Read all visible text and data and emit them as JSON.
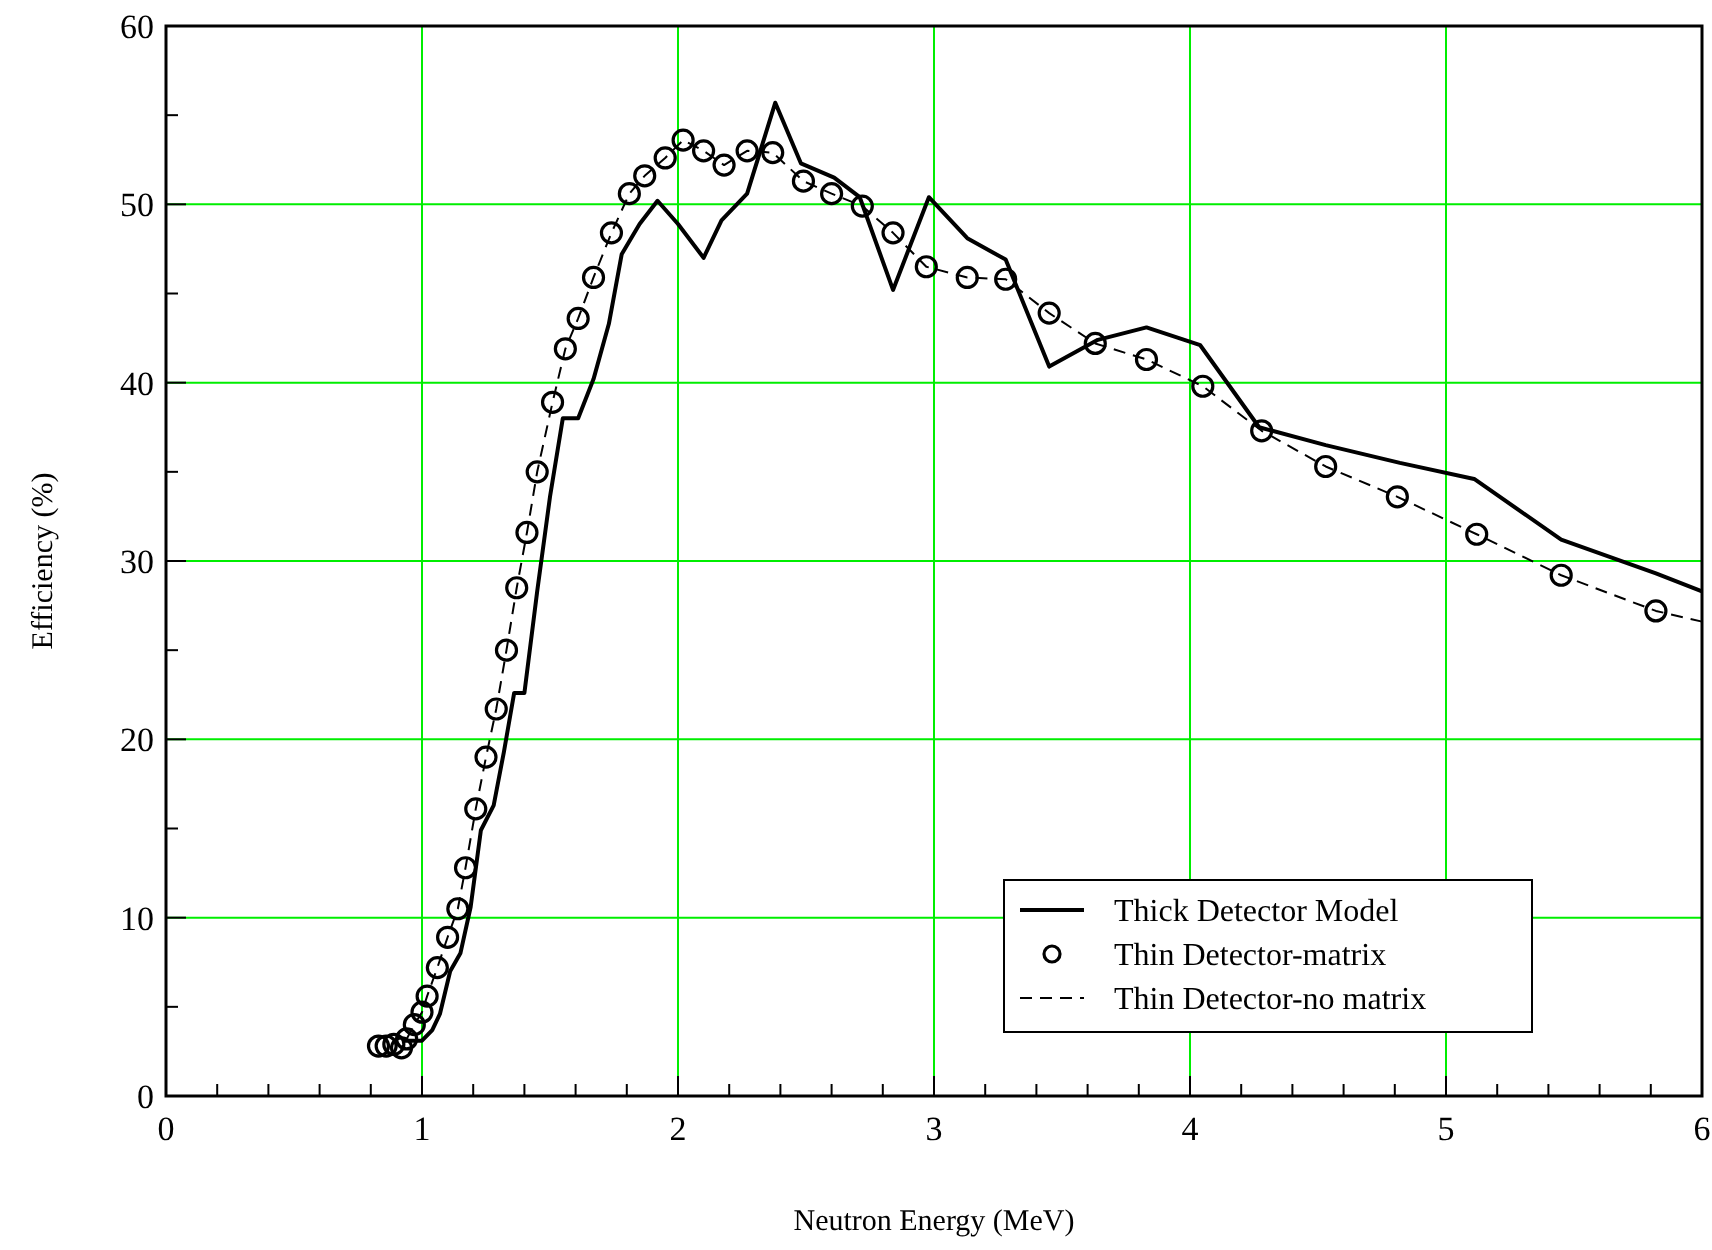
{
  "chart_data": {
    "type": "line",
    "xlabel": "Neutron Energy (MeV)",
    "ylabel": "Efficiency (%)",
    "xlim": [
      0,
      6
    ],
    "ylim": [
      0,
      60
    ],
    "xticks": [
      0,
      {
        "value": 0.2,
        "label": null
      },
      {
        "value": 0.4,
        "label": null
      },
      {
        "value": 0.6,
        "label": null
      },
      {
        "value": 0.8,
        "label": null
      },
      1,
      {
        "value": 1.2,
        "label": null
      },
      {
        "value": 1.4,
        "label": null
      },
      {
        "value": 1.6,
        "label": null
      },
      {
        "value": 1.8,
        "label": null
      },
      2,
      {
        "value": 2.2,
        "label": null
      },
      {
        "value": 2.4,
        "label": null
      },
      {
        "value": 2.6,
        "label": null
      },
      {
        "value": 2.8,
        "label": null
      },
      3,
      {
        "value": 3.2,
        "label": null
      },
      {
        "value": 3.4,
        "label": null
      },
      {
        "value": 3.6,
        "label": null
      },
      {
        "value": 3.8,
        "label": null
      },
      4,
      {
        "value": 4.2,
        "label": null
      },
      {
        "value": 4.4,
        "label": null
      },
      {
        "value": 4.6,
        "label": null
      },
      {
        "value": 4.8,
        "label": null
      },
      5,
      {
        "value": 5.2,
        "label": null
      },
      {
        "value": 5.4,
        "label": null
      },
      {
        "value": 5.6,
        "label": null
      },
      {
        "value": 5.8,
        "label": null
      },
      6
    ],
    "yticks": [
      0,
      {
        "value": 5,
        "label": null
      },
      10,
      {
        "value": 15,
        "label": null
      },
      20,
      {
        "value": 25,
        "label": null
      },
      30,
      {
        "value": 35,
        "label": null
      },
      40,
      {
        "value": 45,
        "label": null
      },
      50,
      {
        "value": 55,
        "label": null
      },
      60
    ],
    "grid": true,
    "legend": "bottom right",
    "series": [
      {
        "name": "Thick Detector Model",
        "type": "line",
        "color": "#000000",
        "line_style": "solid",
        "marker": "none",
        "x": [
          0.93,
          1.0,
          1.04,
          1.07,
          1.11,
          1.15,
          1.19,
          1.23,
          1.28,
          1.32,
          1.36,
          1.4,
          1.45,
          1.5,
          1.55,
          1.61,
          1.67,
          1.73,
          1.78,
          1.85,
          1.92,
          2.0,
          2.1,
          2.17,
          2.27,
          2.38,
          2.48,
          2.61,
          2.71,
          2.84,
          2.98,
          3.13,
          3.28,
          3.45,
          3.64,
          3.83,
          4.04,
          4.27,
          4.53,
          4.82,
          5.11,
          5.45,
          5.82,
          6.0
        ],
        "values": [
          3.1,
          3.1,
          3.7,
          4.6,
          7.0,
          8.0,
          10.6,
          14.9,
          16.3,
          19.3,
          22.6,
          22.6,
          28.3,
          33.6,
          38.0,
          38.0,
          40.2,
          43.3,
          47.2,
          48.9,
          50.2,
          48.9,
          47.0,
          49.1,
          50.6,
          55.7,
          52.3,
          51.5,
          50.4,
          45.2,
          50.4,
          48.1,
          46.9,
          40.9,
          42.4,
          43.1,
          42.1,
          37.5,
          36.5,
          35.5,
          34.6,
          31.2,
          29.3,
          28.3
        ]
      },
      {
        "name": "Thin Detector-matrix",
        "type": "scatter",
        "color": "#000000",
        "marker": "circle",
        "x": [
          0.83,
          0.86,
          0.89,
          0.92,
          0.94,
          0.97,
          1.0,
          1.02,
          1.06,
          1.1,
          1.14,
          1.17,
          1.21,
          1.25,
          1.29,
          1.33,
          1.37,
          1.41,
          1.45,
          1.51,
          1.56,
          1.61,
          1.67,
          1.74,
          1.81,
          1.87,
          1.95,
          2.02,
          2.1,
          2.18,
          2.27,
          2.37,
          2.49,
          2.6,
          2.72,
          2.84,
          2.97,
          3.13,
          3.28,
          3.45,
          3.63,
          3.83,
          4.05,
          4.28,
          4.53,
          4.81,
          5.12,
          5.45,
          5.82
        ],
        "values": [
          2.8,
          2.8,
          2.9,
          2.7,
          3.2,
          4.0,
          4.7,
          5.6,
          7.2,
          8.9,
          10.5,
          12.8,
          16.1,
          19.0,
          21.7,
          25.0,
          28.5,
          31.6,
          35.0,
          38.9,
          41.9,
          43.6,
          45.9,
          48.4,
          50.6,
          51.6,
          52.6,
          53.6,
          53.0,
          52.2,
          53.0,
          52.9,
          51.3,
          50.6,
          49.9,
          48.4,
          46.5,
          45.9,
          45.8,
          43.9,
          42.2,
          41.3,
          39.8,
          37.3,
          35.3,
          33.6,
          31.5,
          29.2,
          27.2
        ]
      },
      {
        "name": "Thin Detector-no matrix",
        "type": "line",
        "color": "#000000",
        "line_style": "dashed",
        "marker": "none",
        "x": [
          0.94,
          0.97,
          1.0,
          1.02,
          1.06,
          1.1,
          1.14,
          1.17,
          1.21,
          1.25,
          1.29,
          1.33,
          1.37,
          1.41,
          1.45,
          1.51,
          1.56,
          1.61,
          1.67,
          1.74,
          1.81,
          1.87,
          1.95,
          2.02,
          2.1,
          2.18,
          2.27,
          2.37,
          2.49,
          2.6,
          2.72,
          2.84,
          2.97,
          3.13,
          3.28,
          3.45,
          3.63,
          3.83,
          4.05,
          4.28,
          4.53,
          4.81,
          5.12,
          5.45,
          5.82,
          6.0
        ],
        "values": [
          3.2,
          4.0,
          4.7,
          5.6,
          7.2,
          8.9,
          10.5,
          12.8,
          16.1,
          19.0,
          21.7,
          25.0,
          28.5,
          31.6,
          35.0,
          38.9,
          41.9,
          43.6,
          45.9,
          48.4,
          50.6,
          51.6,
          52.6,
          53.6,
          53.0,
          52.2,
          53.0,
          52.9,
          51.3,
          50.6,
          49.9,
          48.4,
          46.5,
          45.9,
          45.8,
          43.9,
          42.2,
          41.3,
          39.8,
          37.3,
          35.3,
          33.6,
          31.5,
          29.2,
          27.2,
          26.6
        ]
      }
    ]
  }
}
